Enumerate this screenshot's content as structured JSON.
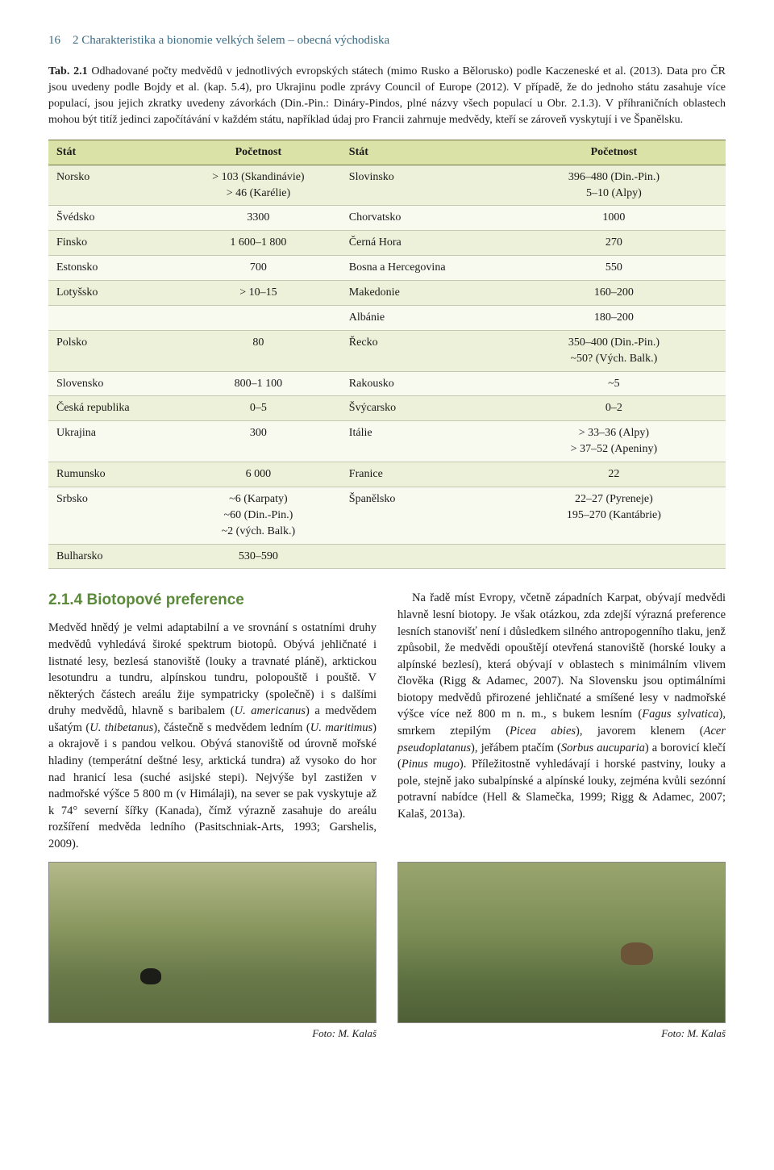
{
  "header": {
    "page_number": "16",
    "chapter": "2 Charakteristika a bionomie velkých šelem – obecná východiska"
  },
  "table_caption": {
    "label": "Tab. 2.1",
    "text": "Odhadované počty medvědů v jednotlivých evropských státech (mimo Rusko a Bělorusko) podle Kaczeneské et al. (2013). Data pro ČR jsou uvedeny podle Bojdy et al. (kap. 5.4), pro Ukrajinu podle zprávy Council of Europe (2012). V případě, že do jednoho státu zasahuje více populací, jsou jejich zkratky uvedeny závorkách (Din.-Pin.: Dináry-Pindos, plné názvy všech populací u Obr. 2.1.3). V příhraničních oblastech mohou být titíž jedinci započítávání v každém státu, například údaj pro Francii zahrnuje medvědy, kteří se zároveň vyskytují i ve Španělsku."
  },
  "table": {
    "headers": [
      "Stát",
      "Početnost",
      "Stát",
      "Početnost"
    ],
    "rows": [
      [
        "Norsko",
        "> 103 (Skandinávie)\n> 46 (Karélie)",
        "Slovinsko",
        "396–480 (Din.-Pin.)\n5–10 (Alpy)"
      ],
      [
        "Švédsko",
        "3300",
        "Chorvatsko",
        "1000"
      ],
      [
        "Finsko",
        "1 600–1 800",
        "Černá Hora",
        "270"
      ],
      [
        "Estonsko",
        "700",
        "Bosna a Hercegovina",
        "550"
      ],
      [
        "Lotyšsko",
        "> 10–15",
        "Makedonie",
        "160–200"
      ],
      [
        "",
        "",
        "Albánie",
        "180–200"
      ],
      [
        "Polsko",
        "80",
        "Řecko",
        "350–400 (Din.-Pin.)\n~50? (Vých. Balk.)"
      ],
      [
        "Slovensko",
        "800–1 100",
        "Rakousko",
        "~5"
      ],
      [
        "Česká republika",
        "0–5",
        "Švýcarsko",
        "0–2"
      ],
      [
        "Ukrajina",
        "300",
        "Itálie",
        "> 33–36 (Alpy)\n> 37–52 (Apeniny)"
      ],
      [
        "Rumunsko",
        "6 000",
        "Franice",
        "22"
      ],
      [
        "Srbsko",
        "~6 (Karpaty)\n~60 (Din.-Pin.)\n~2 (vých. Balk.)",
        "Španělsko",
        "22–27 (Pyreneje)\n195–270 (Kantábrie)"
      ],
      [
        "Bulharsko",
        "530–590",
        "",
        ""
      ]
    ]
  },
  "section": {
    "number": "2.1.4",
    "title": "Biotopové preference"
  },
  "body": {
    "left_para": "Medvěd hnědý je velmi adaptabilní a ve srovnání s ostatními druhy medvědů vyhledává široké spektrum biotopů. Obývá jehličnaté i listnaté lesy, bezlesá stanoviště (louky a travnaté pláně), arktickou lesotundru a tundru, alpínskou tundru, polopouště i pouště. V některých částech areálu žije sympatricky (společně) i s dalšími druhy medvědů, hlavně s baribalem (<i>U. americanus</i>) a medvědem ušatým (<i>U. thibetanus</i>), částečně s medvědem ledním (<i>U. maritimus</i>) a okrajově i s pandou velkou. Obývá stanoviště od úrovně mořské hladiny (temperátní deštné lesy, arktická tundra) až vysoko do hor nad hranicí lesa (suché asijské stepi). Nejvýše byl zastižen v nadmořské výšce 5 800 m (v Himálaji), na sever se pak vyskytuje až k 74° severní šířky (Kanada), čímž výrazně zasahuje do areálu rozšíření medvěda ledního (Pasitschniak-Arts, 1993; Garshelis, 2009).",
    "right_para": "Na řadě míst Evropy, včetně západních Karpat, obývají medvědi hlavně lesní biotopy. Je však otázkou, zda zdejší výrazná preference lesních stanovišť není i důsledkem silného antropogenního tlaku, jenž způsobil, že medvědi opouštějí otevřená stanoviště (horské louky a alpínské bezlesí), která obývají v oblastech s minimálním vlivem člověka (Rigg & Adamec, 2007). Na Slovensku jsou optimálními biotopy medvědů přirozené jehličnaté a smíšené lesy v nadmořské výšce více než 800 m n. m., s bukem lesním (<i>Fagus sylvatica</i>), smrkem ztepilým (<i>Picea abies</i>), javorem klenem (<i>Acer pseudoplatanus</i>), jeřábem ptačím (<i>Sorbus aucuparia</i>) a borovicí klečí (<i>Pinus mugo</i>). Příležitostně vyhledávají i horské pastviny, louky a pole, stejně jako subalpínské a alpínské louky, zejména kvůli sezónní potravní nabídce (Hell & Slamečka, 1999; Rigg & Adamec, 2007; Kalaš, 2013a)."
  },
  "credits": {
    "left": "Foto: M. Kalaš",
    "right": "Foto: M. Kalaš"
  }
}
